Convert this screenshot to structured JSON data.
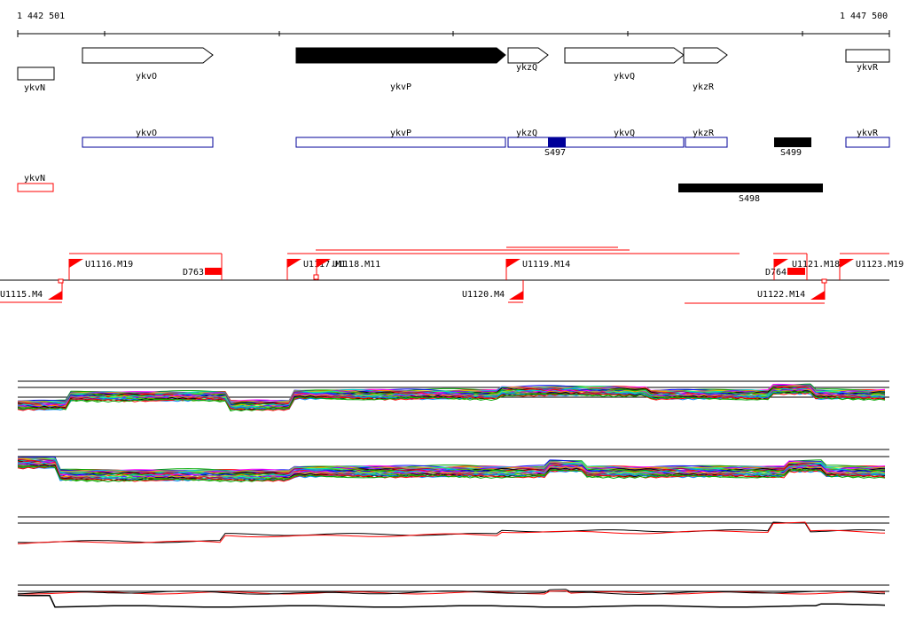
{
  "ruler": {
    "start_label": "1 442 501",
    "end_label": "1 447 500"
  },
  "genes": [
    {
      "id": "ykvN",
      "label": "ykvN",
      "shape": "box",
      "filled": false
    },
    {
      "id": "ykvO",
      "label": "ykvO",
      "shape": "arrow",
      "filled": false
    },
    {
      "id": "ykvP",
      "label": "ykvP",
      "shape": "arrow",
      "filled": true
    },
    {
      "id": "ykzQ",
      "label": "ykzQ",
      "shape": "arrow",
      "filled": false
    },
    {
      "id": "ykvQ",
      "label": "ykvQ",
      "shape": "arrow",
      "filled": false
    },
    {
      "id": "ykzR",
      "label": "ykzR",
      "shape": "arrow",
      "filled": false
    },
    {
      "id": "ykvR",
      "label": "ykvR",
      "shape": "box",
      "filled": false
    }
  ],
  "transcripts_blue": [
    {
      "label": "ykvO"
    },
    {
      "label": "ykvP"
    },
    {
      "label": "ykzQ"
    },
    {
      "label": "ykvQ"
    },
    {
      "label": "ykzR"
    },
    {
      "label": "ykvR"
    }
  ],
  "transcripts_red": [
    {
      "label": "ykvN"
    }
  ],
  "segments": [
    {
      "label": "S497",
      "color": "#000099"
    },
    {
      "label": "S499",
      "color": "#000000"
    },
    {
      "label": "S498",
      "color": "#000000"
    }
  ],
  "upstream_labels": [
    {
      "label": "U1116.M19"
    },
    {
      "label": "D763"
    },
    {
      "label": "U1117.M1"
    },
    {
      "label": "U1118.M11"
    },
    {
      "label": "U1119.M14"
    },
    {
      "label": "D764"
    },
    {
      "label": "U1121.M18"
    },
    {
      "label": "U1123.M19"
    },
    {
      "label": "U1115.M4"
    },
    {
      "label": "U1120.M4"
    },
    {
      "label": "U1122.M14"
    }
  ],
  "colors": {
    "highlight": "#ff0000",
    "transcript": "#000099",
    "axis": "#000000"
  }
}
